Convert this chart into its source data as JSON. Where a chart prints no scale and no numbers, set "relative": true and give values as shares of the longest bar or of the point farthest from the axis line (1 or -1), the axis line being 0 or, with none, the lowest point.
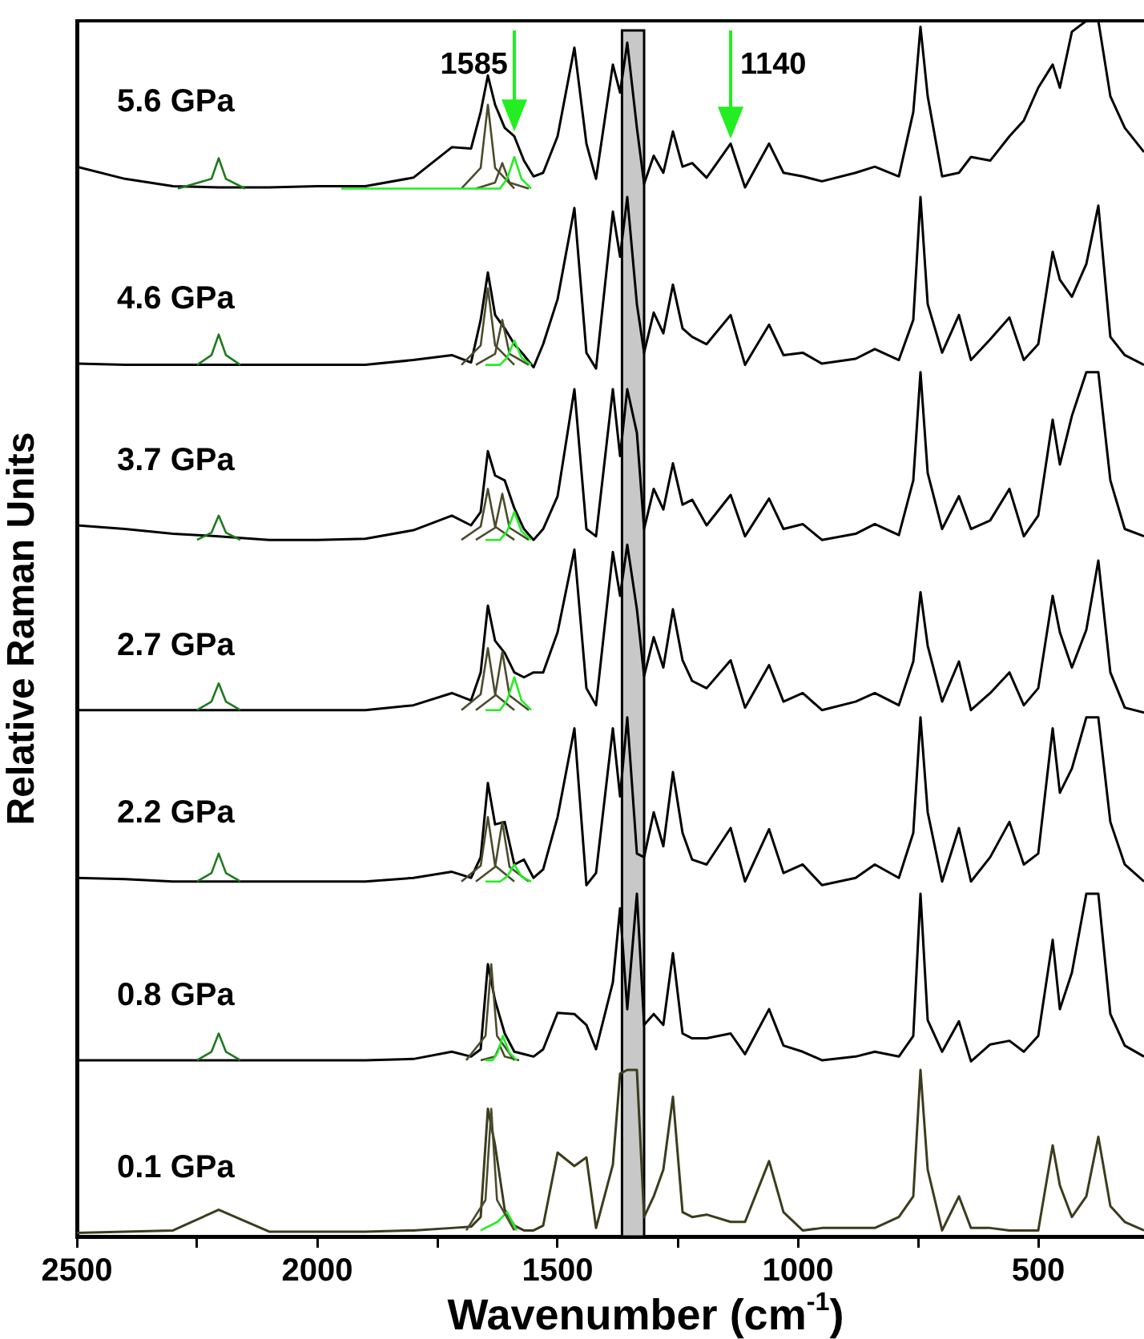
{
  "chart_data": {
    "type": "line",
    "relative": true,
    "xlabel": "Wavenumber (cm$^{-1}$)",
    "ylabel": "Relative Raman Units",
    "xlim": [
      2500,
      280
    ],
    "xticks": [
      2500,
      {
        "value": 2250,
        "label": null
      },
      2000,
      {
        "value": 1750,
        "label": null
      },
      1500,
      {
        "value": 1250,
        "label": null
      },
      1000,
      {
        "value": 750,
        "label": null
      },
      500
    ],
    "x": [
      2500,
      2400,
      2300,
      2205,
      2100,
      2000,
      1900,
      1800,
      1720,
      1680,
      1660,
      1645,
      1630,
      1610,
      1590,
      1570,
      1550,
      1530,
      1500,
      1465,
      1440,
      1420,
      1385,
      1370,
      1355,
      1335,
      1320,
      1300,
      1280,
      1260,
      1240,
      1220,
      1190,
      1140,
      1110,
      1060,
      1030,
      990,
      950,
      880,
      840,
      790,
      760,
      745,
      730,
      700,
      665,
      640,
      600,
      560,
      530,
      500,
      470,
      455,
      430,
      400,
      375,
      350,
      320,
      280
    ],
    "bands": [
      {
        "axis": "x",
        "from": 1366,
        "to": 1320,
        "color": "#c8c8c8"
      }
    ],
    "annotations": [
      {
        "text": "1585",
        "x": 1590,
        "y": 0.905
      },
      {
        "text": "1140",
        "x": 1140,
        "y": 0.899
      }
    ],
    "series": [
      {
        "type": "line",
        "color": "#1e7a1e",
        "x": [
          2290,
          2220,
          2205,
          2190,
          2150
        ],
        "values": [
          0.862,
          0.87,
          0.887,
          0.87,
          0.862
        ]
      },
      {
        "type": "line",
        "color": "#22ee22",
        "x": [
          1950,
          1620,
          1605,
          1590,
          1575,
          1555
        ],
        "values": [
          0.862,
          0.862,
          0.87,
          0.888,
          0.87,
          0.862
        ]
      },
      {
        "type": "line",
        "color": "#4b4b2d",
        "x": [
          1700,
          1660,
          1645,
          1630,
          1590
        ],
        "values": [
          0.862,
          0.879,
          0.931,
          0.879,
          0.862
        ]
      },
      {
        "type": "line",
        "color": "#4b4b2d",
        "x": [
          1670,
          1630,
          1615,
          1600,
          1560
        ],
        "values": [
          0.862,
          0.867,
          0.883,
          0.867,
          0.862
        ]
      },
      {
        "type": "line",
        "color": "#1e7a1e",
        "x": [
          2250,
          2220,
          2205,
          2190,
          2160
        ],
        "values": [
          0.717,
          0.725,
          0.742,
          0.725,
          0.717
        ]
      },
      {
        "type": "line",
        "color": "#22ee22",
        "x": [
          1650,
          1620,
          1605,
          1590,
          1575,
          1555
        ],
        "values": [
          0.717,
          0.717,
          0.723,
          0.737,
          0.723,
          0.717
        ]
      },
      {
        "type": "line",
        "color": "#4b4b2d",
        "x": [
          1700,
          1660,
          1645,
          1630,
          1590
        ],
        "values": [
          0.717,
          0.733,
          0.78,
          0.733,
          0.717
        ]
      },
      {
        "type": "line",
        "color": "#4b4b2d",
        "x": [
          1670,
          1630,
          1615,
          1600,
          1560
        ],
        "values": [
          0.717,
          0.726,
          0.754,
          0.726,
          0.717
        ]
      },
      {
        "type": "line",
        "color": "#1e7a1e",
        "x": [
          2250,
          2220,
          2205,
          2190,
          2160
        ],
        "values": [
          0.573,
          0.579,
          0.593,
          0.579,
          0.573
        ]
      },
      {
        "type": "line",
        "color": "#22ee22",
        "x": [
          1650,
          1620,
          1605,
          1590,
          1575,
          1555
        ],
        "values": [
          0.573,
          0.573,
          0.58,
          0.596,
          0.58,
          0.573
        ]
      },
      {
        "type": "line",
        "color": "#4b4b2d",
        "x": [
          1700,
          1660,
          1645,
          1630,
          1590
        ],
        "values": [
          0.573,
          0.584,
          0.615,
          0.584,
          0.573
        ]
      },
      {
        "type": "line",
        "color": "#4b4b2d",
        "x": [
          1670,
          1630,
          1615,
          1600,
          1560
        ],
        "values": [
          0.573,
          0.583,
          0.611,
          0.583,
          0.573
        ]
      },
      {
        "type": "line",
        "color": "#1e7a1e",
        "x": [
          2250,
          2220,
          2205,
          2190,
          2160
        ],
        "values": [
          0.433,
          0.44,
          0.455,
          0.44,
          0.433
        ]
      },
      {
        "type": "line",
        "color": "#22ee22",
        "x": [
          1650,
          1620,
          1605,
          1590,
          1575,
          1555
        ],
        "values": [
          0.433,
          0.433,
          0.441,
          0.46,
          0.441,
          0.433
        ]
      },
      {
        "type": "line",
        "color": "#4b4b2d",
        "x": [
          1700,
          1660,
          1645,
          1630,
          1590
        ],
        "values": [
          0.433,
          0.446,
          0.484,
          0.446,
          0.433
        ]
      },
      {
        "type": "line",
        "color": "#4b4b2d",
        "x": [
          1670,
          1630,
          1615,
          1600,
          1560
        ],
        "values": [
          0.433,
          0.445,
          0.481,
          0.445,
          0.433
        ]
      },
      {
        "type": "line",
        "color": "#1e7a1e",
        "x": [
          2250,
          2220,
          2205,
          2190,
          2160
        ],
        "values": [
          0.292,
          0.299,
          0.315,
          0.299,
          0.292
        ]
      },
      {
        "type": "line",
        "color": "#22ee22",
        "x": [
          1650,
          1620,
          1605,
          1590,
          1575,
          1555
        ],
        "values": [
          0.292,
          0.292,
          0.296,
          0.306,
          0.296,
          0.292
        ]
      },
      {
        "type": "line",
        "color": "#4b4b2d",
        "x": [
          1700,
          1660,
          1645,
          1630,
          1590
        ],
        "values": [
          0.292,
          0.305,
          0.345,
          0.305,
          0.292
        ]
      },
      {
        "type": "line",
        "color": "#4b4b2d",
        "x": [
          1670,
          1630,
          1615,
          1600,
          1560
        ],
        "values": [
          0.292,
          0.304,
          0.341,
          0.304,
          0.292
        ]
      },
      {
        "type": "line",
        "color": "#1e7a1e",
        "x": [
          2250,
          2220,
          2205,
          2190,
          2160
        ],
        "values": [
          0.145,
          0.152,
          0.167,
          0.152,
          0.145
        ]
      },
      {
        "type": "line",
        "color": "#22ee22",
        "x": [
          1650,
          1635,
          1625,
          1614,
          1600,
          1585
        ],
        "values": [
          0.145,
          0.145,
          0.151,
          0.165,
          0.151,
          0.145
        ]
      },
      {
        "type": "line",
        "color": "#4b4b2d",
        "x": [
          1690,
          1650,
          1638,
          1626,
          1590
        ],
        "values": [
          0.145,
          0.165,
          0.224,
          0.165,
          0.145
        ]
      },
      {
        "type": "line",
        "color": "#4b4b2d",
        "x": [
          1660,
          1630,
          1620,
          1610,
          1580
        ],
        "values": [
          0.145,
          0.148,
          0.157,
          0.148,
          0.145
        ]
      },
      {
        "type": "line",
        "color": "#4b4b2d",
        "x": [
          1690,
          1650,
          1638,
          1626,
          1590
        ],
        "values": [
          0.005,
          0.03,
          0.105,
          0.03,
          0.005
        ]
      },
      {
        "type": "line",
        "color": "#22ee22",
        "x": [
          1660,
          1625,
          1605,
          1585
        ],
        "values": [
          0.005,
          0.012,
          0.02,
          0.005
        ]
      },
      {
        "name": "5.6 GPa",
        "color": "#000000",
        "values": [
          0.88,
          0.87,
          0.864,
          0.863,
          0.863,
          0.864,
          0.864,
          0.871,
          0.896,
          0.895,
          0.925,
          0.955,
          0.931,
          0.912,
          0.905,
          0.885,
          0.872,
          0.875,
          0.905,
          0.978,
          0.899,
          0.87,
          0.964,
          0.941,
          0.982,
          0.912,
          0.866,
          0.889,
          0.875,
          0.909,
          0.88,
          0.883,
          0.871,
          0.899,
          0.863,
          0.899,
          0.875,
          0.872,
          0.868,
          0.875,
          0.88,
          0.872,
          0.925,
          0.995,
          0.938,
          0.872,
          0.875,
          0.888,
          0.885,
          0.905,
          0.918,
          0.945,
          0.964,
          0.945,
          0.991,
          1,
          1,
          0.938,
          0.912,
          0.892
        ]
      },
      {
        "name": "4.6 GPa",
        "color": "#000000",
        "values": [
          0.718,
          0.717,
          0.717,
          0.717,
          0.717,
          0.717,
          0.717,
          0.721,
          0.725,
          0.719,
          0.754,
          0.793,
          0.758,
          0.747,
          0.734,
          0.725,
          0.715,
          0.734,
          0.771,
          0.846,
          0.727,
          0.714,
          0.843,
          0.806,
          0.855,
          0.767,
          0.727,
          0.76,
          0.743,
          0.783,
          0.747,
          0.74,
          0.734,
          0.758,
          0.717,
          0.75,
          0.725,
          0.727,
          0.718,
          0.722,
          0.73,
          0.721,
          0.754,
          0.855,
          0.767,
          0.727,
          0.758,
          0.721,
          0.738,
          0.756,
          0.721,
          0.734,
          0.81,
          0.787,
          0.773,
          0.8,
          0.848,
          0.74,
          0.725,
          0.717
        ]
      },
      {
        "name": "3.7 GPa",
        "color": "#000000",
        "values": [
          0.585,
          0.582,
          0.578,
          0.576,
          0.573,
          0.573,
          0.574,
          0.581,
          0.593,
          0.585,
          0.596,
          0.646,
          0.626,
          0.622,
          0.599,
          0.582,
          0.573,
          0.582,
          0.609,
          0.697,
          0.582,
          0.576,
          0.697,
          0.642,
          0.697,
          0.661,
          0.582,
          0.615,
          0.598,
          0.636,
          0.602,
          0.606,
          0.585,
          0.61,
          0.576,
          0.607,
          0.582,
          0.586,
          0.573,
          0.578,
          0.586,
          0.577,
          0.622,
          0.711,
          0.628,
          0.582,
          0.609,
          0.582,
          0.589,
          0.615,
          0.576,
          0.593,
          0.672,
          0.635,
          0.675,
          0.711,
          0.711,
          0.622,
          0.582,
          0.576
        ]
      },
      {
        "name": "2.7 GPa",
        "color": "#000000",
        "values": [
          0.433,
          0.433,
          0.433,
          0.433,
          0.433,
          0.433,
          0.433,
          0.437,
          0.447,
          0.441,
          0.464,
          0.519,
          0.49,
          0.48,
          0.464,
          0.46,
          0.464,
          0.464,
          0.497,
          0.565,
          0.451,
          0.437,
          0.563,
          0.527,
          0.569,
          0.516,
          0.461,
          0.493,
          0.468,
          0.516,
          0.474,
          0.457,
          0.451,
          0.474,
          0.435,
          0.47,
          0.44,
          0.447,
          0.433,
          0.44,
          0.447,
          0.437,
          0.473,
          0.53,
          0.486,
          0.44,
          0.473,
          0.433,
          0.447,
          0.464,
          0.437,
          0.451,
          0.527,
          0.497,
          0.468,
          0.499,
          0.556,
          0.464,
          0.435,
          0.431
        ]
      },
      {
        "name": "2.2 GPa",
        "color": "#000000",
        "values": [
          0.295,
          0.294,
          0.292,
          0.292,
          0.292,
          0.292,
          0.292,
          0.295,
          0.3,
          0.295,
          0.312,
          0.373,
          0.339,
          0.341,
          0.306,
          0.31,
          0.295,
          0.302,
          0.345,
          0.418,
          0.289,
          0.299,
          0.418,
          0.362,
          0.427,
          0.315,
          0.312,
          0.349,
          0.321,
          0.382,
          0.332,
          0.31,
          0.306,
          0.336,
          0.292,
          0.335,
          0.299,
          0.306,
          0.289,
          0.295,
          0.306,
          0.295,
          0.332,
          0.427,
          0.349,
          0.292,
          0.336,
          0.292,
          0.312,
          0.341,
          0.306,
          0.315,
          0.418,
          0.365,
          0.385,
          0.427,
          0.427,
          0.341,
          0.306,
          0.292
        ]
      },
      {
        "name": "0.8 GPa",
        "color": "#000000",
        "values": [
          0.145,
          0.145,
          0.145,
          0.145,
          0.145,
          0.145,
          0.145,
          0.146,
          0.152,
          0.148,
          0.154,
          0.224,
          0.194,
          0.167,
          0.152,
          0.15,
          0.148,
          0.154,
          0.184,
          0.183,
          0.174,
          0.154,
          0.209,
          0.27,
          0.187,
          0.282,
          0.174,
          0.183,
          0.174,
          0.233,
          0.167,
          0.163,
          0.163,
          0.167,
          0.15,
          0.187,
          0.157,
          0.152,
          0.145,
          0.148,
          0.152,
          0.148,
          0.165,
          0.282,
          0.178,
          0.152,
          0.177,
          0.144,
          0.158,
          0.161,
          0.152,
          0.165,
          0.244,
          0.187,
          0.217,
          0.282,
          0.282,
          0.183,
          0.157,
          0.148
        ]
      },
      {
        "name": "0.1 GPa",
        "color": "#3c3c1e",
        "values": [
          0.003,
          0.004,
          0.005,
          0.022,
          0.004,
          0.004,
          0.004,
          0.005,
          0.007,
          0.008,
          0.016,
          0.105,
          0.075,
          0.022,
          0.009,
          0.005,
          0.005,
          0.009,
          0.069,
          0.058,
          0.065,
          0.007,
          0.059,
          0.134,
          0.137,
          0.137,
          0.016,
          0.033,
          0.055,
          0.115,
          0.02,
          0.016,
          0.018,
          0.012,
          0.012,
          0.062,
          0.02,
          0.005,
          0.007,
          0.007,
          0.007,
          0.016,
          0.033,
          0.137,
          0.055,
          0.005,
          0.033,
          0.007,
          0.007,
          0.005,
          0.005,
          0.005,
          0.075,
          0.042,
          0.016,
          0.033,
          0.082,
          0.025,
          0.012,
          0.005
        ]
      }
    ]
  }
}
